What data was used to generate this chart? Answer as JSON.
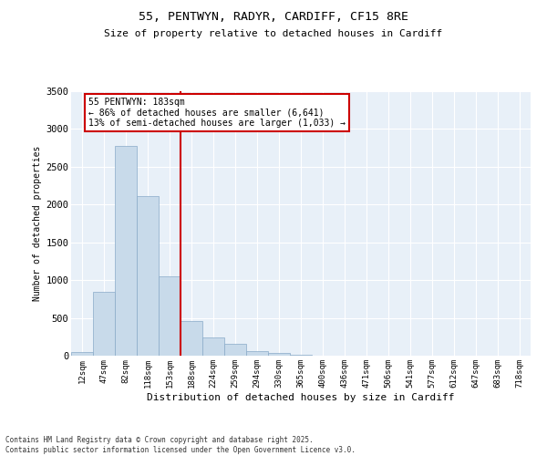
{
  "title_line1": "55, PENTWYN, RADYR, CARDIFF, CF15 8RE",
  "title_line2": "Size of property relative to detached houses in Cardiff",
  "xlabel": "Distribution of detached houses by size in Cardiff",
  "ylabel": "Number of detached properties",
  "bar_color": "#c8daea",
  "bar_edge_color": "#88aac8",
  "background_color": "#e8f0f8",
  "grid_color": "#ffffff",
  "categories": [
    "12sqm",
    "47sqm",
    "82sqm",
    "118sqm",
    "153sqm",
    "188sqm",
    "224sqm",
    "259sqm",
    "294sqm",
    "330sqm",
    "365sqm",
    "400sqm",
    "436sqm",
    "471sqm",
    "506sqm",
    "541sqm",
    "577sqm",
    "612sqm",
    "647sqm",
    "683sqm",
    "718sqm"
  ],
  "values": [
    50,
    850,
    2780,
    2110,
    1050,
    460,
    245,
    160,
    65,
    35,
    18,
    5,
    1,
    0,
    0,
    0,
    0,
    0,
    0,
    0,
    0
  ],
  "ylim": [
    0,
    3500
  ],
  "yticks": [
    0,
    500,
    1000,
    1500,
    2000,
    2500,
    3000,
    3500
  ],
  "vline_x_idx": 4.5,
  "vline_color": "#cc0000",
  "annotation_text": "55 PENTWYN: 183sqm\n← 86% of detached houses are smaller (6,641)\n13% of semi-detached houses are larger (1,033) →",
  "annotation_box_edgecolor": "#cc0000",
  "footer_line1": "Contains HM Land Registry data © Crown copyright and database right 2025.",
  "footer_line2": "Contains public sector information licensed under the Open Government Licence v3.0."
}
